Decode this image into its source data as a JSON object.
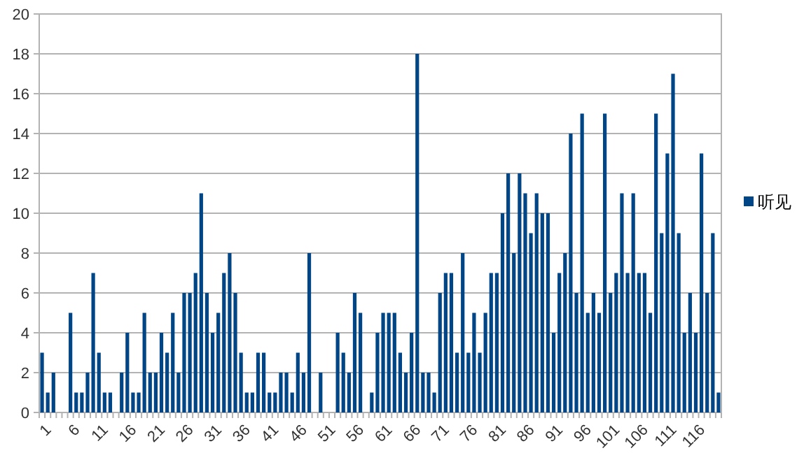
{
  "chart_data": {
    "type": "bar",
    "categories": [
      "1",
      null,
      null,
      null,
      null,
      "6",
      null,
      null,
      null,
      null,
      "11",
      null,
      null,
      null,
      null,
      "16",
      null,
      null,
      null,
      null,
      "21",
      null,
      null,
      null,
      null,
      "26",
      null,
      null,
      null,
      null,
      "31",
      null,
      null,
      null,
      null,
      "36",
      null,
      null,
      null,
      null,
      "41",
      null,
      null,
      null,
      null,
      "46",
      null,
      null,
      null,
      null,
      "51",
      null,
      null,
      null,
      null,
      "56",
      null,
      null,
      null,
      null,
      "61",
      null,
      null,
      null,
      null,
      "66",
      null,
      null,
      null,
      null,
      "71",
      null,
      null,
      null,
      null,
      "76",
      null,
      null,
      null,
      null,
      "81",
      null,
      null,
      null,
      null,
      "86",
      null,
      null,
      null,
      null,
      "91",
      null,
      null,
      null,
      null,
      "96",
      null,
      null,
      null,
      null,
      "101",
      null,
      null,
      null,
      null,
      "106",
      null,
      null,
      null,
      null,
      "111",
      null,
      null,
      null,
      null,
      "116",
      null,
      null,
      null,
      null
    ],
    "series": [
      {
        "name": "听见",
        "color": "#004586",
        "values": [
          3,
          1,
          2,
          0,
          0,
          5,
          1,
          1,
          2,
          7,
          3,
          1,
          1,
          0,
          2,
          4,
          1,
          1,
          5,
          2,
          2,
          4,
          3,
          5,
          2,
          6,
          6,
          7,
          11,
          6,
          4,
          5,
          7,
          8,
          6,
          3,
          1,
          1,
          3,
          3,
          1,
          1,
          2,
          2,
          1,
          3,
          2,
          8,
          0,
          2,
          0,
          0,
          4,
          3,
          2,
          6,
          5,
          0,
          1,
          4,
          5,
          5,
          5,
          3,
          2,
          4,
          18,
          2,
          2,
          1,
          6,
          7,
          7,
          3,
          8,
          3,
          5,
          3,
          5,
          7,
          7,
          10,
          12,
          8,
          12,
          11,
          9,
          11,
          10,
          10,
          4,
          7,
          8,
          14,
          6,
          15,
          5,
          6,
          5,
          15,
          6,
          7,
          11,
          7,
          11,
          7,
          7,
          5,
          15,
          9,
          13,
          17,
          9,
          4,
          6,
          4,
          13,
          6,
          9,
          1
        ]
      }
    ],
    "ylim": [
      0,
      20
    ],
    "yticks": [
      0,
      2,
      4,
      6,
      8,
      10,
      12,
      14,
      16,
      18,
      20
    ],
    "grid": "y",
    "legend": "right"
  }
}
